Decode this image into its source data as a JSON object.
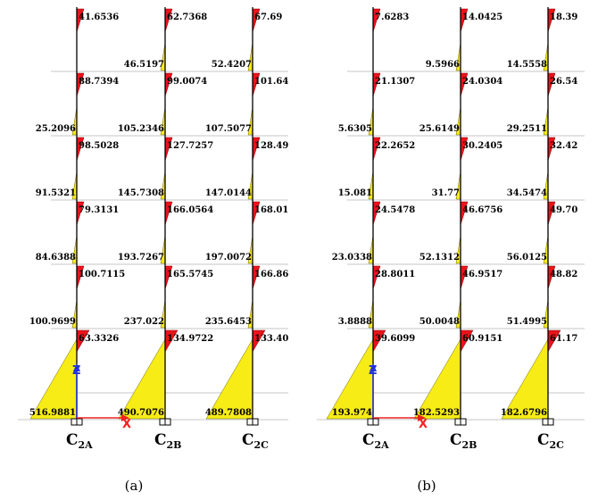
{
  "panels": [
    {
      "caption": "(a)",
      "column_labels": [
        {
          "main": "C",
          "sub": "2A"
        },
        {
          "main": "C",
          "sub": "2B"
        },
        {
          "main": "C",
          "sub": "2C"
        }
      ],
      "axis_labels": {
        "z": "Z",
        "x": "X"
      },
      "storeys": [
        {
          "top": [
            "41.6536",
            "62.7368",
            "67.69"
          ],
          "bottom": [
            "",
            "46.5197",
            "52.4207"
          ]
        },
        {
          "top": [
            "88.7394",
            "99.0074",
            "101.64"
          ],
          "bottom": [
            "25.2096",
            "105.2346",
            "107.5077"
          ]
        },
        {
          "top": [
            "98.5028",
            "127.7257",
            "128.49"
          ],
          "bottom": [
            "91.5321",
            "145.7308",
            "147.0144"
          ]
        },
        {
          "top": [
            "79.3131",
            "166.0564",
            "168.01"
          ],
          "bottom": [
            "84.6388",
            "193.7267",
            "197.0072"
          ]
        },
        {
          "top": [
            "100.7115",
            "165.5745",
            "166.86"
          ],
          "bottom": [
            "100.9699",
            "237.022",
            "235.6453"
          ]
        },
        {
          "top": [
            "63.3326",
            "134.9722",
            "133.40"
          ],
          "bottom": [
            "516.9881",
            "490.7076",
            "489.7808"
          ]
        }
      ]
    },
    {
      "caption": "(b)",
      "column_labels": [
        {
          "main": "C",
          "sub": "2A"
        },
        {
          "main": "C",
          "sub": "2B"
        },
        {
          "main": "C",
          "sub": "2C"
        }
      ],
      "axis_labels": {
        "z": "Z",
        "x": "X"
      },
      "storeys": [
        {
          "top": [
            "7.6283",
            "14.0425",
            "18.39"
          ],
          "bottom": [
            "",
            "9.5966",
            "14.5558"
          ]
        },
        {
          "top": [
            "21.1307",
            "24.0304",
            "26.54"
          ],
          "bottom": [
            "5.6305",
            "25.6149",
            "29.2511"
          ]
        },
        {
          "top": [
            "22.2652",
            "30.2405",
            "32.42"
          ],
          "bottom": [
            "15.081",
            "31.77",
            "34.5474"
          ]
        },
        {
          "top": [
            "24.5478",
            "46.6756",
            "49.70"
          ],
          "bottom": [
            "23.0338",
            "52.1312",
            "56.0125"
          ]
        },
        {
          "top": [
            "28.8011",
            "46.9517",
            "48.82"
          ],
          "bottom": [
            "3.8888",
            "50.0048",
            "51.4995"
          ]
        },
        {
          "top": [
            "39.6099",
            "60.9151",
            "61.17"
          ],
          "bottom": [
            "193.974",
            "182.5293",
            "182.6796"
          ]
        }
      ]
    }
  ],
  "colors": {
    "negative": "#e8141c",
    "positive": "#f7ec16",
    "z_axis": "#2233dd",
    "x_axis": "#ee2222"
  }
}
